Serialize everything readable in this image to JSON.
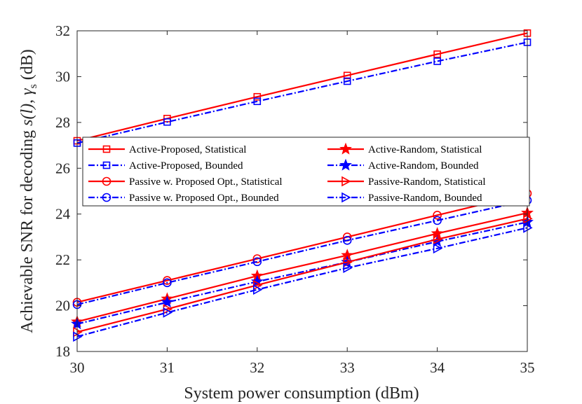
{
  "chart_data": {
    "type": "line",
    "xlabel": "System power consumption (dBm)",
    "ylabel": "Achievable SNR for decoding s(l), γs (dB)",
    "ylabel_parts": {
      "prefix": "Achievable SNR for decoding ",
      "signal": "s(l)",
      "separator": ", ",
      "gamma": "γ",
      "subscript": "s",
      "unit": " (dB)"
    },
    "xlim": [
      30,
      35
    ],
    "ylim": [
      18,
      32
    ],
    "xticks": [
      "30",
      "31",
      "32",
      "33",
      "34",
      "35"
    ],
    "yticks": [
      "18",
      "20",
      "22",
      "24",
      "26",
      "28",
      "30",
      "32"
    ],
    "grid": false,
    "x": [
      30,
      31,
      32,
      33,
      34,
      35
    ],
    "series": [
      {
        "name": "Active-Proposed, Statistical",
        "values": [
          27.2,
          28.17,
          29.12,
          30.05,
          30.98,
          31.9
        ],
        "color": "#ff0000",
        "dash": "solid",
        "marker": "square"
      },
      {
        "name": "Active-Random, Statistical",
        "values": [
          19.3,
          20.3,
          21.3,
          22.2,
          23.15,
          24.05
        ],
        "color": "#ff0000",
        "dash": "solid",
        "marker": "star"
      },
      {
        "name": "Active-Proposed, Bounded",
        "values": [
          27.1,
          28.02,
          28.92,
          29.8,
          30.67,
          31.5
        ],
        "color": "#0000ff",
        "dash": "dashdot",
        "marker": "square"
      },
      {
        "name": "Active-Random, Bounded",
        "values": [
          19.2,
          20.15,
          21.05,
          21.9,
          22.8,
          23.65
        ],
        "color": "#0000ff",
        "dash": "dashdot",
        "marker": "star"
      },
      {
        "name": "Passive w. Proposed Opt., Statistical",
        "values": [
          20.15,
          21.1,
          22.05,
          23.0,
          23.95,
          24.9
        ],
        "color": "#ff0000",
        "dash": "solid",
        "marker": "circle"
      },
      {
        "name": "Passive-Random, Statistical",
        "values": [
          18.85,
          19.85,
          20.9,
          21.9,
          22.9,
          23.8
        ],
        "color": "#ff0000",
        "dash": "solid",
        "marker": "triangle-right"
      },
      {
        "name": "Passive w. Proposed Opt., Bounded",
        "values": [
          20.05,
          21.0,
          21.92,
          22.85,
          23.72,
          24.6
        ],
        "color": "#0000ff",
        "dash": "dashdot",
        "marker": "circle"
      },
      {
        "name": "Passive-Random, Bounded",
        "values": [
          18.65,
          19.7,
          20.7,
          21.65,
          22.5,
          23.4
        ],
        "color": "#0000ff",
        "dash": "dashdot",
        "marker": "triangle-right"
      }
    ],
    "legend_position": "center-left"
  }
}
